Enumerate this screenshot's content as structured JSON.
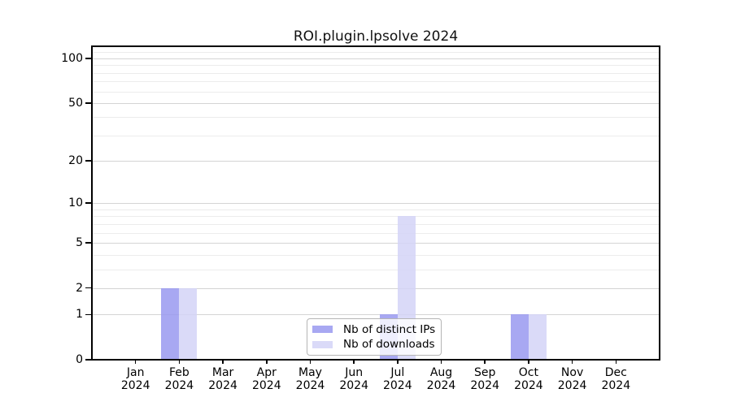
{
  "chart_data": {
    "type": "bar",
    "title": "ROI.plugin.lpsolve 2024",
    "categories": [
      "Jan",
      "Feb",
      "Mar",
      "Apr",
      "May",
      "Jun",
      "Jul",
      "Aug",
      "Sep",
      "Oct",
      "Nov",
      "Dec"
    ],
    "year_label": "2024",
    "series": [
      {
        "name": "Nb of distinct IPs",
        "color": "#a8a8f2",
        "values": [
          0,
          2,
          0,
          0,
          0,
          0,
          1,
          0,
          0,
          1,
          0,
          0
        ]
      },
      {
        "name": "Nb of downloads",
        "color": "#dadaf8",
        "values": [
          0,
          2,
          0,
          0,
          0,
          0,
          8,
          0,
          0,
          1,
          0,
          0
        ]
      }
    ],
    "yscale": "log1p",
    "ylim": [
      0,
      120.6
    ],
    "yticks": [
      100,
      50,
      20,
      10,
      5,
      2,
      1,
      0
    ],
    "minor_yticks": [
      3,
      4,
      6,
      7,
      8,
      9,
      30,
      40,
      60,
      70,
      80,
      90,
      110
    ],
    "grid": "horizontal",
    "legend": {
      "position": "bottom-center"
    },
    "colors": {
      "background": "#ffffff",
      "axis": "#000000",
      "major_grid": "#d4d4d4",
      "minor_grid": "#ececec",
      "legend_border": "#b5b5b5",
      "text": "#000000"
    }
  }
}
